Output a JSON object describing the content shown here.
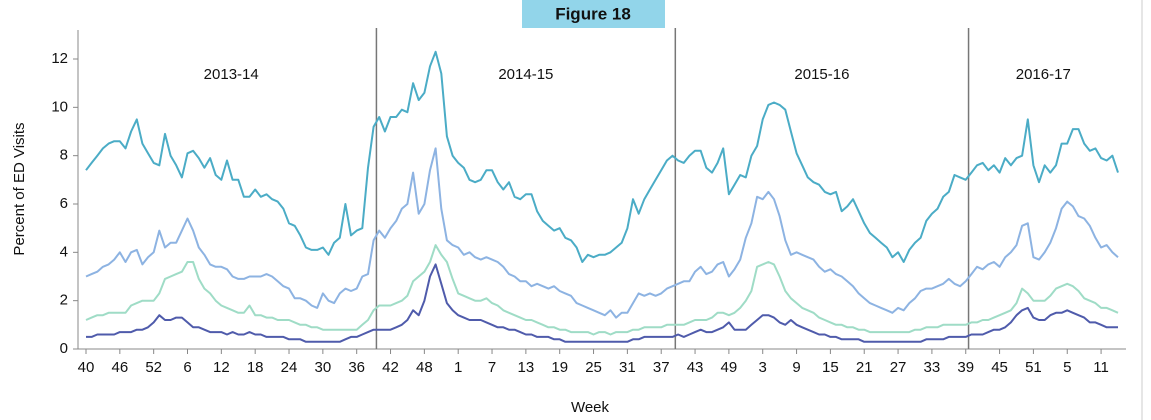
{
  "chart_data": {
    "type": "line",
    "title": "Figure 18",
    "y_label": "Percent of ED Visits",
    "x_label": "Week",
    "seasons": [
      "2013-14",
      "2014-15",
      "2015-16",
      "2016-17"
    ],
    "categories": [
      "40",
      null,
      null,
      null,
      null,
      null,
      "46",
      null,
      null,
      null,
      null,
      null,
      "52",
      null,
      null,
      null,
      null,
      null,
      "6",
      null,
      null,
      null,
      null,
      null,
      "12",
      null,
      null,
      null,
      null,
      null,
      "18",
      null,
      null,
      null,
      null,
      null,
      "24",
      null,
      null,
      null,
      null,
      null,
      "30",
      null,
      null,
      null,
      null,
      null,
      "36",
      null,
      null,
      null,
      null,
      null,
      "42",
      null,
      null,
      null,
      null,
      null,
      "48",
      null,
      null,
      null,
      null,
      null,
      "1",
      null,
      null,
      null,
      null,
      null,
      "7",
      null,
      null,
      null,
      null,
      null,
      "13",
      null,
      null,
      null,
      null,
      null,
      "19",
      null,
      null,
      null,
      null,
      null,
      "25",
      null,
      null,
      null,
      null,
      null,
      "31",
      null,
      null,
      null,
      null,
      null,
      "37",
      null,
      null,
      null,
      null,
      null,
      "43",
      null,
      null,
      null,
      null,
      null,
      "49",
      null,
      null,
      null,
      null,
      null,
      "3",
      null,
      null,
      null,
      null,
      null,
      "9",
      null,
      null,
      null,
      null,
      null,
      "15",
      null,
      null,
      null,
      null,
      null,
      "21",
      null,
      null,
      null,
      null,
      null,
      "27",
      null,
      null,
      null,
      null,
      null,
      "33",
      null,
      null,
      null,
      null,
      null,
      "39",
      null,
      null,
      null,
      null,
      null,
      "45",
      null,
      null,
      null,
      null,
      null,
      "51",
      null,
      null,
      null,
      null,
      null,
      "5",
      null,
      null,
      null,
      null,
      null,
      "11",
      null,
      null,
      null
    ],
    "series": [
      {
        "color": "#4bacc6",
        "values": [
          7.4,
          7.7,
          8.0,
          8.3,
          8.5,
          8.6,
          8.6,
          8.3,
          9.0,
          9.5,
          8.5,
          8.1,
          7.7,
          7.6,
          8.9,
          8.0,
          7.6,
          7.1,
          8.1,
          8.2,
          7.9,
          7.5,
          7.9,
          7.2,
          7.0,
          7.8,
          7.0,
          7.0,
          6.3,
          6.3,
          6.6,
          6.3,
          6.4,
          6.2,
          6.1,
          5.8,
          5.2,
          5.1,
          4.7,
          4.2,
          4.1,
          4.1,
          4.2,
          3.9,
          4.4,
          4.6,
          6.0,
          4.7,
          4.9,
          5.0,
          7.5,
          9.2,
          9.6,
          9.0,
          9.6,
          9.6,
          9.9,
          9.8,
          11.0,
          10.3,
          10.6,
          11.7,
          12.3,
          11.4,
          8.8,
          8.0,
          7.7,
          7.5,
          7.0,
          6.9,
          7.0,
          7.4,
          7.4,
          6.9,
          6.6,
          6.9,
          6.3,
          6.2,
          6.4,
          6.4,
          5.7,
          5.3,
          5.1,
          4.9,
          5.0,
          4.6,
          4.5,
          4.2,
          3.6,
          3.9,
          3.8,
          3.9,
          3.9,
          4.0,
          4.2,
          4.4,
          5.0,
          6.2,
          5.6,
          6.2,
          6.6,
          7.0,
          7.4,
          7.8,
          8.0,
          7.8,
          7.7,
          8.0,
          8.2,
          8.2,
          7.5,
          7.3,
          7.7,
          8.3,
          6.4,
          6.8,
          7.2,
          7.1,
          8.0,
          8.4,
          9.5,
          10.1,
          10.2,
          10.1,
          9.9,
          9.0,
          8.1,
          7.6,
          7.1,
          6.9,
          6.8,
          6.5,
          6.4,
          6.5,
          5.7,
          5.9,
          6.2,
          5.7,
          5.2,
          4.8,
          4.6,
          4.4,
          4.2,
          3.8,
          4.0,
          3.6,
          4.1,
          4.4,
          4.6,
          5.3,
          5.6,
          5.8,
          6.3,
          6.5,
          7.2,
          7.1,
          7.0,
          7.3,
          7.6,
          7.7,
          7.4,
          7.6,
          7.3,
          7.9,
          7.6,
          7.9,
          8.0,
          9.5,
          7.6,
          6.9,
          7.6,
          7.3,
          7.6,
          8.5,
          8.5,
          9.1,
          9.1,
          8.5,
          8.2,
          8.3,
          7.9,
          7.8,
          8.0,
          7.3
        ]
      },
      {
        "color": "#8db3e2",
        "values": [
          3.0,
          3.1,
          3.2,
          3.4,
          3.5,
          3.7,
          4.0,
          3.6,
          4.0,
          4.1,
          3.5,
          3.8,
          4.0,
          4.9,
          4.2,
          4.4,
          4.4,
          4.9,
          5.4,
          4.9,
          4.2,
          3.9,
          3.5,
          3.4,
          3.4,
          3.3,
          3.0,
          2.9,
          2.9,
          3.0,
          3.0,
          3.0,
          3.1,
          3.0,
          2.8,
          2.6,
          2.5,
          2.1,
          2.1,
          2.0,
          1.8,
          1.7,
          2.3,
          2.0,
          1.9,
          2.3,
          2.5,
          2.4,
          2.5,
          3.0,
          3.1,
          4.5,
          4.9,
          4.6,
          5.0,
          5.3,
          5.8,
          6.0,
          7.3,
          5.6,
          6.0,
          7.4,
          8.3,
          5.8,
          4.5,
          4.3,
          4.2,
          3.9,
          4.0,
          3.8,
          3.7,
          3.8,
          3.7,
          3.6,
          3.4,
          3.1,
          3.0,
          2.8,
          2.8,
          2.6,
          2.7,
          2.6,
          2.5,
          2.6,
          2.4,
          2.3,
          2.2,
          1.9,
          1.8,
          1.7,
          1.6,
          1.5,
          1.4,
          1.6,
          1.3,
          1.5,
          1.5,
          1.9,
          2.3,
          2.2,
          2.3,
          2.2,
          2.3,
          2.5,
          2.6,
          2.7,
          2.8,
          2.8,
          3.2,
          3.4,
          3.1,
          3.2,
          3.5,
          3.6,
          3.0,
          3.3,
          3.7,
          4.6,
          5.2,
          6.3,
          6.2,
          6.5,
          6.2,
          5.5,
          4.5,
          3.9,
          4.0,
          3.9,
          3.8,
          3.7,
          3.4,
          3.2,
          3.3,
          3.1,
          3.0,
          2.8,
          2.6,
          2.3,
          2.1,
          1.9,
          1.8,
          1.7,
          1.6,
          1.5,
          1.7,
          1.6,
          1.9,
          2.1,
          2.4,
          2.5,
          2.5,
          2.6,
          2.7,
          2.9,
          2.7,
          2.6,
          2.8,
          3.1,
          3.4,
          3.3,
          3.5,
          3.6,
          3.4,
          3.8,
          4.0,
          4.3,
          5.1,
          5.2,
          3.8,
          3.7,
          4.0,
          4.4,
          5.0,
          5.8,
          6.1,
          5.9,
          5.5,
          5.4,
          5.1,
          4.6,
          4.2,
          4.3,
          4.0,
          3.8
        ]
      },
      {
        "color": "#9fdcc6",
        "values": [
          1.2,
          1.3,
          1.4,
          1.4,
          1.5,
          1.5,
          1.5,
          1.5,
          1.8,
          1.9,
          2.0,
          2.0,
          2.0,
          2.3,
          2.9,
          3.0,
          3.1,
          3.2,
          3.6,
          3.6,
          2.9,
          2.5,
          2.3,
          2.0,
          1.8,
          1.7,
          1.6,
          1.5,
          1.5,
          1.8,
          1.4,
          1.4,
          1.3,
          1.3,
          1.2,
          1.2,
          1.2,
          1.1,
          1.0,
          1.0,
          0.9,
          0.9,
          0.8,
          0.8,
          0.8,
          0.8,
          0.8,
          0.8,
          0.8,
          1.0,
          1.2,
          1.6,
          1.8,
          1.8,
          1.8,
          1.9,
          2.0,
          2.2,
          2.8,
          3.0,
          3.2,
          3.6,
          4.3,
          3.9,
          3.6,
          2.9,
          2.3,
          2.2,
          2.1,
          2.0,
          2.0,
          2.1,
          1.9,
          1.8,
          1.6,
          1.5,
          1.4,
          1.3,
          1.2,
          1.2,
          1.1,
          1.0,
          0.9,
          0.9,
          0.8,
          0.8,
          0.7,
          0.7,
          0.7,
          0.7,
          0.6,
          0.7,
          0.7,
          0.6,
          0.7,
          0.7,
          0.7,
          0.8,
          0.8,
          0.9,
          0.9,
          0.9,
          0.9,
          1.0,
          1.0,
          1.0,
          1.0,
          1.1,
          1.2,
          1.2,
          1.2,
          1.3,
          1.5,
          1.5,
          1.4,
          1.5,
          1.7,
          2.0,
          2.4,
          3.4,
          3.5,
          3.6,
          3.5,
          3.0,
          2.4,
          2.1,
          1.9,
          1.7,
          1.6,
          1.5,
          1.3,
          1.2,
          1.1,
          1.0,
          1.0,
          0.9,
          0.9,
          0.8,
          0.8,
          0.7,
          0.7,
          0.7,
          0.7,
          0.7,
          0.7,
          0.7,
          0.7,
          0.8,
          0.8,
          0.9,
          0.9,
          0.9,
          1.0,
          1.0,
          1.0,
          1.0,
          1.0,
          1.1,
          1.1,
          1.2,
          1.2,
          1.3,
          1.4,
          1.5,
          1.6,
          1.9,
          2.5,
          2.3,
          2.0,
          2.0,
          2.0,
          2.2,
          2.5,
          2.6,
          2.7,
          2.6,
          2.4,
          2.1,
          2.0,
          1.9,
          1.7,
          1.7,
          1.6,
          1.5
        ]
      },
      {
        "color": "#4f5bab",
        "values": [
          0.5,
          0.5,
          0.6,
          0.6,
          0.6,
          0.6,
          0.7,
          0.7,
          0.7,
          0.8,
          0.8,
          0.9,
          1.1,
          1.4,
          1.2,
          1.2,
          1.3,
          1.3,
          1.1,
          0.9,
          0.9,
          0.8,
          0.7,
          0.7,
          0.7,
          0.6,
          0.7,
          0.6,
          0.6,
          0.7,
          0.6,
          0.6,
          0.5,
          0.5,
          0.5,
          0.5,
          0.4,
          0.4,
          0.4,
          0.3,
          0.3,
          0.3,
          0.3,
          0.3,
          0.3,
          0.3,
          0.4,
          0.5,
          0.5,
          0.6,
          0.7,
          0.8,
          0.8,
          0.8,
          0.8,
          0.9,
          1.0,
          1.2,
          1.6,
          1.4,
          2.0,
          3.0,
          3.5,
          2.7,
          1.9,
          1.6,
          1.4,
          1.3,
          1.2,
          1.2,
          1.2,
          1.1,
          1.0,
          0.9,
          0.9,
          0.8,
          0.8,
          0.7,
          0.6,
          0.6,
          0.5,
          0.5,
          0.5,
          0.4,
          0.4,
          0.3,
          0.3,
          0.3,
          0.3,
          0.3,
          0.3,
          0.3,
          0.3,
          0.3,
          0.3,
          0.3,
          0.3,
          0.4,
          0.4,
          0.5,
          0.5,
          0.5,
          0.5,
          0.5,
          0.5,
          0.6,
          0.5,
          0.6,
          0.7,
          0.8,
          0.7,
          0.7,
          0.8,
          0.9,
          1.1,
          0.8,
          0.8,
          0.8,
          1.0,
          1.2,
          1.4,
          1.4,
          1.3,
          1.1,
          1.0,
          1.2,
          1.0,
          0.9,
          0.8,
          0.7,
          0.6,
          0.6,
          0.5,
          0.5,
          0.4,
          0.4,
          0.4,
          0.4,
          0.3,
          0.3,
          0.3,
          0.3,
          0.3,
          0.3,
          0.3,
          0.3,
          0.3,
          0.3,
          0.3,
          0.4,
          0.4,
          0.4,
          0.4,
          0.5,
          0.5,
          0.5,
          0.5,
          0.6,
          0.6,
          0.6,
          0.7,
          0.8,
          0.8,
          0.9,
          1.1,
          1.4,
          1.6,
          1.7,
          1.3,
          1.2,
          1.2,
          1.4,
          1.5,
          1.5,
          1.6,
          1.5,
          1.4,
          1.3,
          1.1,
          1.1,
          1.0,
          0.9,
          0.9,
          0.9
        ]
      }
    ],
    "ylim": [
      0,
      13.2
    ],
    "yticks": [
      0,
      2,
      4,
      6,
      8,
      10,
      12
    ],
    "title_box_color": "#92d5ea"
  }
}
